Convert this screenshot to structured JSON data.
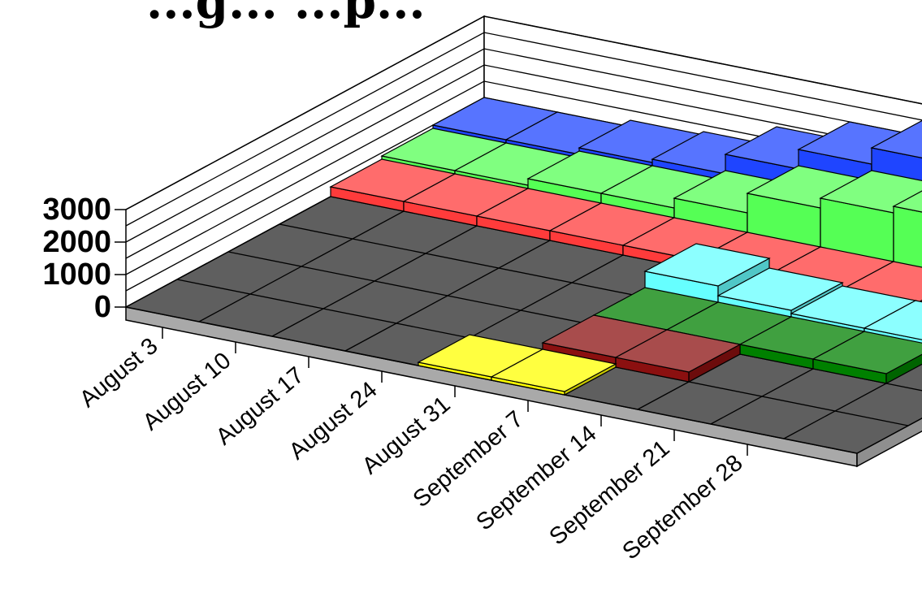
{
  "chart_data": {
    "type": "bar",
    "title": "...g... ...p...",
    "categories": [
      "August 3",
      "August 10",
      "August 17",
      "August 24",
      "August 31",
      "September 7",
      "September 14",
      "September 21",
      "September 28"
    ],
    "y_ticks": [
      "0",
      "1000",
      "2000",
      "3000"
    ],
    "ylim": [
      0,
      3000
    ],
    "grid": true,
    "legend": "none",
    "series": [
      {
        "color": "#ffff00",
        "values": [
          null,
          null,
          null,
          null,
          100,
          100,
          null,
          null,
          null
        ]
      },
      {
        "color": "#8b1010",
        "values": [
          null,
          null,
          null,
          null,
          null,
          300,
          300,
          null,
          null
        ]
      },
      {
        "color": "#008000",
        "values": [
          null,
          null,
          null,
          null,
          null,
          300,
          300,
          300,
          300
        ]
      },
      {
        "color": "#66ffff",
        "values": [
          null,
          null,
          null,
          null,
          null,
          800,
          500,
          400,
          400
        ]
      },
      {
        "color": "#ff3b3b",
        "values": [
          300,
          300,
          300,
          300,
          300,
          300,
          300,
          300,
          300
        ]
      },
      {
        "color": "#55ff55",
        "values": [
          400,
          400,
          600,
          600,
          900,
          1500,
          1800,
          2000,
          2100
        ]
      },
      {
        "color": "#1f45ff",
        "values": [
          500,
          500,
          700,
          800,
          1400,
          2000,
          2500,
          2700,
          2900
        ]
      }
    ]
  }
}
